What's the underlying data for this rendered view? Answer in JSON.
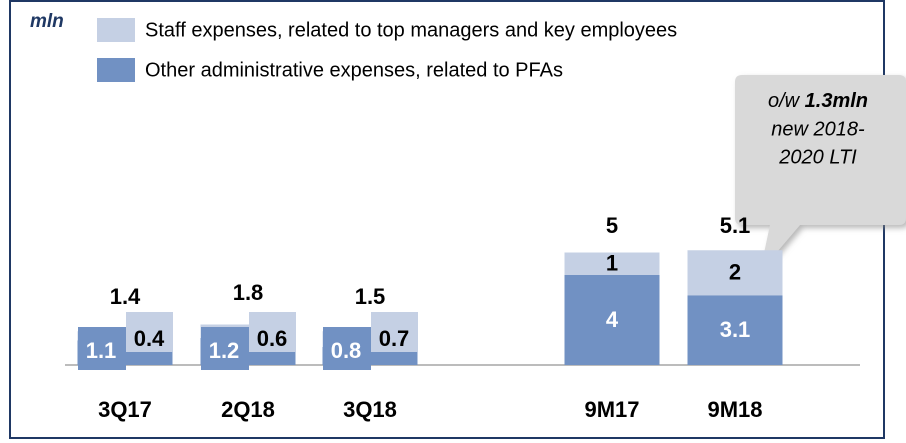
{
  "chart_data": {
    "type": "stacked_bar",
    "unit": "mln",
    "categories": [
      "3Q17",
      "2Q18",
      "3Q18",
      "9M17",
      "9M18"
    ],
    "series": [
      {
        "name": "Other administrative expenses, related to PFAs",
        "color": "#7191c3",
        "values": [
          1.1,
          1.2,
          0.8,
          4.0,
          3.1
        ]
      },
      {
        "name": "Staff expenses, related to top managers and key employees",
        "color": "#c5d0e4",
        "values": [
          0.4,
          0.6,
          0.7,
          1.0,
          2.0
        ]
      }
    ],
    "totals": [
      1.4,
      1.8,
      1.5,
      5.0,
      5.1
    ],
    "ylim": [
      0,
      10
    ],
    "annotation": {
      "prefix": "o/w",
      "highlight": "1.3mln",
      "lines": [
        "new 2018-",
        "2020 LTI"
      ]
    }
  }
}
